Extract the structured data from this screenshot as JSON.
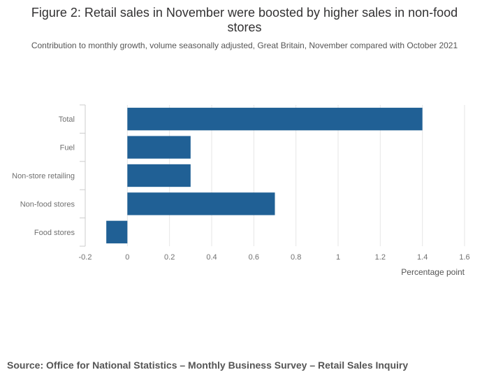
{
  "chart_data": {
    "type": "bar",
    "orientation": "horizontal",
    "title": "Figure 2: Retail sales in November were boosted by higher sales in non-food stores",
    "subtitle": "Contribution to monthly growth, volume seasonally adjusted, Great Britain, November compared with October 2021",
    "categories": [
      "Total",
      "Fuel",
      "Non-store retailing",
      "Non-food stores",
      "Food stores"
    ],
    "values": [
      1.4,
      0.3,
      0.3,
      0.7,
      -0.1
    ],
    "xlabel": "Percentage point",
    "ylabel": "",
    "xlim": [
      -0.2,
      1.6
    ],
    "xticks": [
      -0.2,
      0,
      0.2,
      0.4,
      0.6,
      0.8,
      1,
      1.2,
      1.4,
      1.6
    ],
    "xtick_labels": [
      "-0.2",
      "0",
      "0.2",
      "0.4",
      "0.6",
      "0.8",
      "1",
      "1.2",
      "1.4",
      "1.6"
    ],
    "grid": true,
    "bar_color": "#206095"
  },
  "source": "Source: Office for National Statistics – Monthly Business Survey – Retail Sales Inquiry"
}
